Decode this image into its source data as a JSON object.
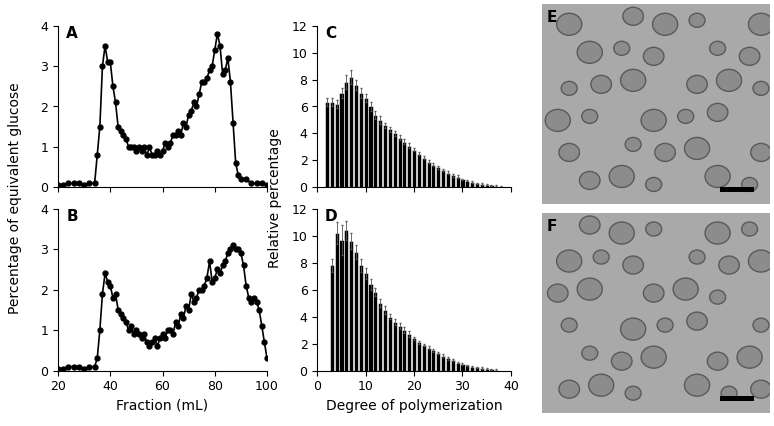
{
  "chart_data": [
    {
      "type": "line",
      "title": "A",
      "y_label": "Percentage of equivalent glucose",
      "x": [
        20,
        22,
        24,
        26,
        28,
        30,
        32,
        34,
        35,
        36,
        37,
        38,
        39,
        40,
        41,
        42,
        43,
        44,
        45,
        46,
        47,
        48,
        49,
        50,
        51,
        52,
        53,
        54,
        55,
        56,
        57,
        58,
        59,
        60,
        61,
        62,
        63,
        64,
        65,
        66,
        67,
        68,
        69,
        70,
        71,
        72,
        73,
        74,
        75,
        76,
        77,
        78,
        79,
        80,
        81,
        82,
        83,
        84,
        85,
        86,
        87,
        88,
        89,
        90,
        92,
        94,
        96,
        98,
        100
      ],
      "values": [
        0.05,
        0.05,
        0.1,
        0.1,
        0.1,
        0.05,
        0.1,
        0.1,
        0.8,
        1.5,
        3.0,
        3.5,
        3.1,
        3.1,
        2.5,
        2.1,
        1.5,
        1.4,
        1.3,
        1.2,
        1.0,
        1.0,
        1.0,
        0.9,
        1.0,
        0.9,
        1.0,
        0.8,
        1.0,
        0.8,
        0.8,
        0.9,
        0.8,
        0.9,
        1.1,
        1.0,
        1.1,
        1.3,
        1.3,
        1.4,
        1.3,
        1.6,
        1.5,
        1.8,
        1.9,
        2.1,
        2.0,
        2.3,
        2.6,
        2.6,
        2.7,
        2.9,
        3.0,
        3.4,
        3.8,
        3.5,
        2.8,
        2.9,
        3.2,
        2.6,
        1.6,
        0.6,
        0.3,
        0.2,
        0.2,
        0.1,
        0.1,
        0.1,
        0.05
      ],
      "color": "#000000",
      "marker": "o",
      "xlim": [
        20,
        100
      ],
      "xticks": [
        20,
        40,
        60,
        80,
        100
      ],
      "ylim": [
        0,
        4
      ],
      "yticks": [
        0,
        1,
        2,
        3,
        4
      ],
      "tick_labels": "y"
    },
    {
      "type": "line",
      "title": "B",
      "x_label": "Fraction (mL)",
      "x": [
        20,
        22,
        24,
        26,
        28,
        30,
        32,
        34,
        35,
        36,
        37,
        38,
        39,
        40,
        41,
        42,
        43,
        44,
        45,
        46,
        47,
        48,
        49,
        50,
        51,
        52,
        53,
        54,
        55,
        56,
        57,
        58,
        59,
        60,
        61,
        62,
        63,
        64,
        65,
        66,
        67,
        68,
        69,
        70,
        71,
        72,
        73,
        74,
        75,
        76,
        77,
        78,
        79,
        80,
        81,
        82,
        83,
        84,
        85,
        86,
        87,
        88,
        89,
        90,
        91,
        92,
        93,
        94,
        95,
        96,
        97,
        98,
        99,
        100
      ],
      "values": [
        0.05,
        0.05,
        0.1,
        0.1,
        0.1,
        0.05,
        0.1,
        0.1,
        0.3,
        1.0,
        1.9,
        2.4,
        2.2,
        2.1,
        1.8,
        1.9,
        1.5,
        1.4,
        1.3,
        1.2,
        1.0,
        1.1,
        0.9,
        1.0,
        0.9,
        0.8,
        0.9,
        0.7,
        0.6,
        0.7,
        0.8,
        0.6,
        0.8,
        0.9,
        0.8,
        1.0,
        1.0,
        0.9,
        1.2,
        1.1,
        1.4,
        1.3,
        1.6,
        1.5,
        1.9,
        1.7,
        1.8,
        2.0,
        2.0,
        2.1,
        2.3,
        2.7,
        2.2,
        2.3,
        2.5,
        2.4,
        2.6,
        2.7,
        2.9,
        3.0,
        3.1,
        3.0,
        3.0,
        2.9,
        2.6,
        2.1,
        1.8,
        1.7,
        1.8,
        1.7,
        1.5,
        1.1,
        0.7,
        0.3
      ],
      "color": "#000000",
      "marker": "o",
      "xlim": [
        20,
        100
      ],
      "xticks": [
        20,
        40,
        60,
        80,
        100
      ],
      "ylim": [
        0,
        4
      ],
      "yticks": [
        0,
        1,
        2,
        3,
        4
      ]
    },
    {
      "type": "bar",
      "title": "C",
      "y_label": "Relative percentage",
      "x": [
        2,
        3,
        4,
        5,
        6,
        7,
        8,
        9,
        10,
        11,
        12,
        13,
        14,
        15,
        16,
        17,
        18,
        19,
        20,
        21,
        22,
        23,
        24,
        25,
        26,
        27,
        28,
        29,
        30,
        31,
        32,
        33,
        34,
        35,
        36,
        37,
        38
      ],
      "values": [
        6.3,
        6.3,
        6.2,
        7.0,
        7.8,
        8.2,
        7.6,
        7.0,
        6.6,
        6.0,
        5.4,
        5.0,
        4.6,
        4.3,
        4.0,
        3.7,
        3.4,
        3.1,
        2.8,
        2.5,
        2.2,
        1.9,
        1.7,
        1.5,
        1.3,
        1.1,
        0.9,
        0.8,
        0.6,
        0.5,
        0.4,
        0.3,
        0.25,
        0.2,
        0.15,
        0.1,
        0.05
      ],
      "errors": [
        0.3,
        0.3,
        0.3,
        0.4,
        0.5,
        0.5,
        0.4,
        0.4,
        0.3,
        0.3,
        0.3,
        0.3,
        0.2,
        0.2,
        0.2,
        0.2,
        0.2,
        0.2,
        0.1,
        0.1,
        0.1,
        0.1,
        0.1,
        0.1,
        0.1,
        0.1,
        0.1,
        0.1,
        0.05,
        0.05,
        0.05,
        0.05,
        0.05,
        0.05,
        0.05,
        0.05,
        0.05
      ],
      "color": "#000000",
      "xlim": [
        0,
        40
      ],
      "xticks": [
        0,
        10,
        20,
        30,
        40
      ],
      "ylim": [
        0,
        12
      ],
      "yticks": [
        0,
        2,
        4,
        6,
        8,
        10,
        12
      ],
      "tick_labels": "y"
    },
    {
      "type": "bar",
      "title": "D",
      "x_label": "Degree of polymerization",
      "x": [
        3,
        4,
        5,
        6,
        7,
        8,
        9,
        10,
        11,
        12,
        13,
        14,
        15,
        16,
        17,
        18,
        19,
        20,
        21,
        22,
        23,
        24,
        25,
        26,
        27,
        28,
        29,
        30,
        31,
        32,
        33,
        34,
        35,
        36,
        37
      ],
      "values": [
        7.8,
        10.2,
        9.7,
        10.4,
        9.6,
        8.8,
        7.8,
        7.2,
        6.4,
        5.8,
        5.0,
        4.5,
        4.0,
        3.6,
        3.3,
        3.0,
        2.7,
        2.4,
        2.1,
        1.9,
        1.7,
        1.5,
        1.3,
        1.1,
        0.9,
        0.8,
        0.6,
        0.5,
        0.4,
        0.3,
        0.25,
        0.2,
        0.15,
        0.1,
        0.05
      ],
      "errors": [
        0.5,
        0.8,
        1.1,
        0.7,
        0.6,
        0.5,
        0.5,
        0.4,
        0.4,
        0.3,
        0.3,
        0.3,
        0.2,
        0.2,
        0.2,
        0.2,
        0.2,
        0.1,
        0.1,
        0.1,
        0.1,
        0.1,
        0.1,
        0.1,
        0.1,
        0.05,
        0.05,
        0.05,
        0.05,
        0.05,
        0.05,
        0.05,
        0.05,
        0.05,
        0.05
      ],
      "color": "#000000",
      "xlim": [
        0,
        40
      ],
      "xticks": [
        0,
        10,
        20,
        30,
        40
      ],
      "ylim": [
        0,
        12
      ],
      "yticks": [
        0,
        2,
        4,
        6,
        8,
        10,
        12
      ]
    }
  ],
  "images": [
    {
      "title": "E"
    },
    {
      "title": "F"
    }
  ]
}
